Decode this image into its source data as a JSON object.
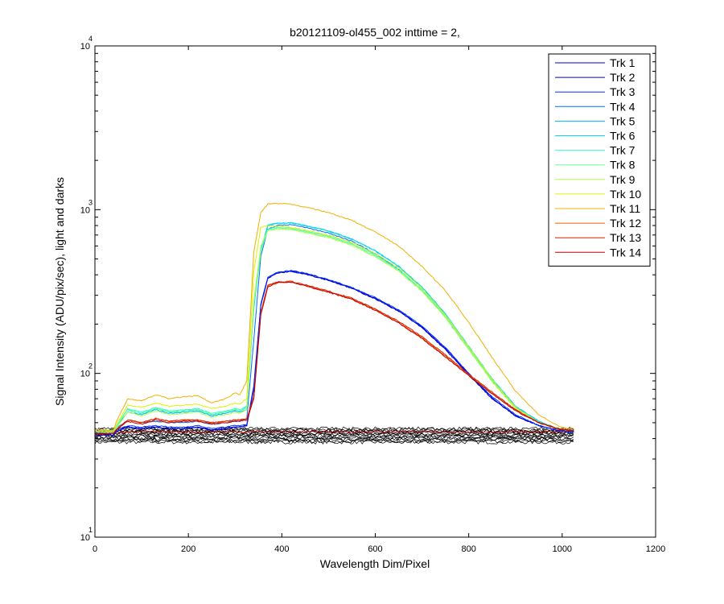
{
  "chart_data": {
    "type": "line",
    "title": "b20121109-ol455_002 inttime = 2,",
    "xlabel": "Wavelength Dim/Pixel",
    "ylabel": "Signal Intensity (ADU/pix/sec), light and darks",
    "xlim": [
      0,
      1200
    ],
    "ylim": [
      10,
      10000
    ],
    "yscale": "log",
    "grid": false,
    "legend_position": "top-right",
    "x_ticks": [
      0,
      200,
      400,
      600,
      800,
      1000,
      1200
    ],
    "x_tick_labels": [
      "0",
      "200",
      "400",
      "600",
      "800",
      "1000",
      "1200"
    ],
    "y_ticks": [
      {
        "value": 10,
        "base": "10",
        "exp": "1"
      },
      {
        "value": 100,
        "base": "10",
        "exp": "2"
      },
      {
        "value": 1000,
        "base": "10",
        "exp": "3"
      },
      {
        "value": 10000,
        "base": "10",
        "exp": "4"
      }
    ],
    "x": [
      0,
      40,
      45,
      70,
      100,
      130,
      160,
      190,
      220,
      250,
      280,
      300,
      310,
      325,
      340,
      355,
      370,
      390,
      420,
      450,
      500,
      550,
      600,
      650,
      700,
      750,
      800,
      850,
      900,
      950,
      990,
      1010,
      1025
    ],
    "series": [
      {
        "name": "Trk 1",
        "color": "#0000bf",
        "values": [
          42,
          42,
          44,
          47,
          46,
          47,
          46,
          46,
          47,
          45,
          46,
          47,
          47,
          48,
          80,
          260,
          380,
          410,
          420,
          405,
          370,
          330,
          285,
          240,
          190,
          140,
          98,
          70,
          55,
          48,
          45,
          44,
          44
        ]
      },
      {
        "name": "Trk 2",
        "color": "#0000e0",
        "values": [
          42,
          42,
          44,
          47,
          46,
          47,
          46,
          46,
          47,
          45,
          46,
          47,
          47,
          48,
          82,
          262,
          382,
          412,
          422,
          407,
          372,
          332,
          287,
          242,
          192,
          142,
          99,
          71,
          55,
          48,
          45,
          44,
          44
        ]
      },
      {
        "name": "Trk 3",
        "color": "#0030ff",
        "values": [
          43,
          43,
          45,
          48,
          47,
          48,
          47,
          47,
          48,
          46,
          47,
          48,
          48,
          49,
          84,
          265,
          385,
          415,
          425,
          410,
          375,
          335,
          290,
          245,
          195,
          144,
          100,
          72,
          56,
          48,
          45,
          44,
          44
        ]
      },
      {
        "name": "Trk 4",
        "color": "#0070ff",
        "values": [
          44,
          44,
          46,
          52,
          50,
          51,
          50,
          50,
          51,
          49,
          50,
          51,
          51,
          53,
          160,
          520,
          760,
          800,
          810,
          780,
          720,
          640,
          540,
          430,
          320,
          220,
          140,
          90,
          62,
          50,
          46,
          45,
          45
        ]
      },
      {
        "name": "Trk 5",
        "color": "#00b0ff",
        "values": [
          44,
          44,
          47,
          58,
          56,
          60,
          57,
          58,
          59,
          55,
          57,
          59,
          58,
          60,
          250,
          560,
          800,
          825,
          830,
          800,
          740,
          660,
          560,
          450,
          335,
          230,
          145,
          92,
          63,
          51,
          46,
          45,
          45
        ]
      },
      {
        "name": "Trk 6",
        "color": "#00e0ef",
        "values": [
          44,
          44,
          47,
          60,
          57,
          61,
          58,
          59,
          60,
          56,
          58,
          60,
          59,
          62,
          260,
          570,
          805,
          828,
          832,
          802,
          742,
          662,
          562,
          452,
          337,
          232,
          146,
          93,
          63,
          51,
          46,
          45,
          45
        ]
      },
      {
        "name": "Trk 7",
        "color": "#30ffcf",
        "values": [
          44,
          44,
          47,
          61,
          58,
          62,
          59,
          60,
          61,
          57,
          59,
          61,
          60,
          63,
          270,
          560,
          760,
          780,
          770,
          740,
          690,
          620,
          530,
          430,
          325,
          225,
          143,
          91,
          62,
          50,
          46,
          45,
          45
        ]
      },
      {
        "name": "Trk 8",
        "color": "#70ff8f",
        "values": [
          44,
          44,
          47,
          60,
          57,
          61,
          58,
          59,
          60,
          56,
          58,
          60,
          59,
          62,
          265,
          555,
          750,
          770,
          762,
          732,
          682,
          612,
          522,
          425,
          320,
          222,
          141,
          90,
          62,
          50,
          46,
          45,
          45
        ]
      },
      {
        "name": "Trk 9",
        "color": "#b0ff4f",
        "values": [
          44,
          44,
          46,
          58,
          55,
          59,
          56,
          57,
          58,
          54,
          56,
          58,
          57,
          60,
          280,
          600,
          745,
          760,
          755,
          725,
          675,
          605,
          515,
          420,
          318,
          220,
          140,
          89,
          61,
          50,
          46,
          45,
          45
        ]
      },
      {
        "name": "Trk 10",
        "color": "#e0f000",
        "values": [
          45,
          45,
          48,
          64,
          62,
          66,
          63,
          64,
          65,
          61,
          63,
          66,
          65,
          70,
          420,
          780,
          800,
          790,
          780,
          750,
          700,
          630,
          540,
          440,
          332,
          228,
          145,
          92,
          62,
          50,
          46,
          45,
          45
        ]
      },
      {
        "name": "Trk 11",
        "color": "#f0b000",
        "values": [
          45,
          45,
          50,
          70,
          68,
          74,
          70,
          72,
          73,
          66,
          70,
          76,
          74,
          90,
          550,
          960,
          1080,
          1090,
          1080,
          1040,
          960,
          860,
          730,
          600,
          450,
          320,
          205,
          125,
          78,
          56,
          48,
          46,
          46
        ]
      },
      {
        "name": "Trk 12",
        "color": "#f06000",
        "values": [
          43,
          43,
          45,
          52,
          50,
          53,
          51,
          52,
          52,
          50,
          51,
          52,
          52,
          53,
          70,
          230,
          340,
          360,
          362,
          345,
          315,
          285,
          245,
          205,
          165,
          128,
          98,
          76,
          60,
          50,
          46,
          45,
          45
        ]
      },
      {
        "name": "Trk 13",
        "color": "#e02000",
        "values": [
          43,
          43,
          45,
          52,
          50,
          53,
          51,
          52,
          52,
          50,
          51,
          52,
          52,
          53,
          72,
          235,
          345,
          362,
          365,
          348,
          318,
          288,
          248,
          208,
          168,
          130,
          99,
          77,
          60,
          50,
          46,
          45,
          45
        ]
      },
      {
        "name": "Trk 14",
        "color": "#c00000",
        "values": [
          43,
          43,
          45,
          51,
          49,
          52,
          50,
          51,
          51,
          49,
          50,
          51,
          51,
          52,
          70,
          228,
          338,
          358,
          360,
          343,
          313,
          283,
          243,
          203,
          163,
          126,
          97,
          75,
          59,
          50,
          46,
          45,
          45
        ]
      }
    ],
    "darks": {
      "color": "#000000",
      "x_range": [
        0,
        1024
      ],
      "level_min": 38,
      "level_max": 46,
      "band_count": 14,
      "red_band": 44
    }
  }
}
